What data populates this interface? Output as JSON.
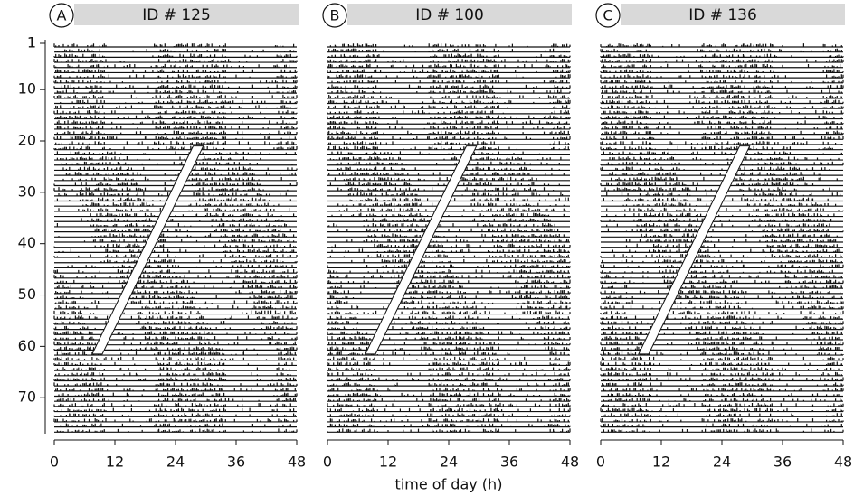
{
  "chart_data": [
    {
      "type": "actogram",
      "panel": "A",
      "title": "ID # 125",
      "xlim": [
        0,
        48
      ],
      "xticks": [
        0,
        12,
        24,
        36,
        48
      ],
      "ylim": [
        1,
        77
      ],
      "yinvert": true,
      "yticks": [
        1,
        10,
        20,
        30,
        40,
        50,
        60,
        70
      ]
    },
    {
      "type": "actogram",
      "panel": "B",
      "title": "ID # 100",
      "xlim": [
        0,
        48
      ],
      "xticks": [
        0,
        12,
        24,
        36,
        48
      ],
      "ylim": [
        1,
        77
      ],
      "yinvert": true,
      "xlabel": "time of day (h)"
    },
    {
      "type": "actogram",
      "panel": "C",
      "title": "ID # 136",
      "xlim": [
        0,
        48
      ],
      "xticks": [
        0,
        12,
        24,
        36,
        48
      ],
      "ylim": [
        1,
        77
      ],
      "yinvert": true
    }
  ]
}
